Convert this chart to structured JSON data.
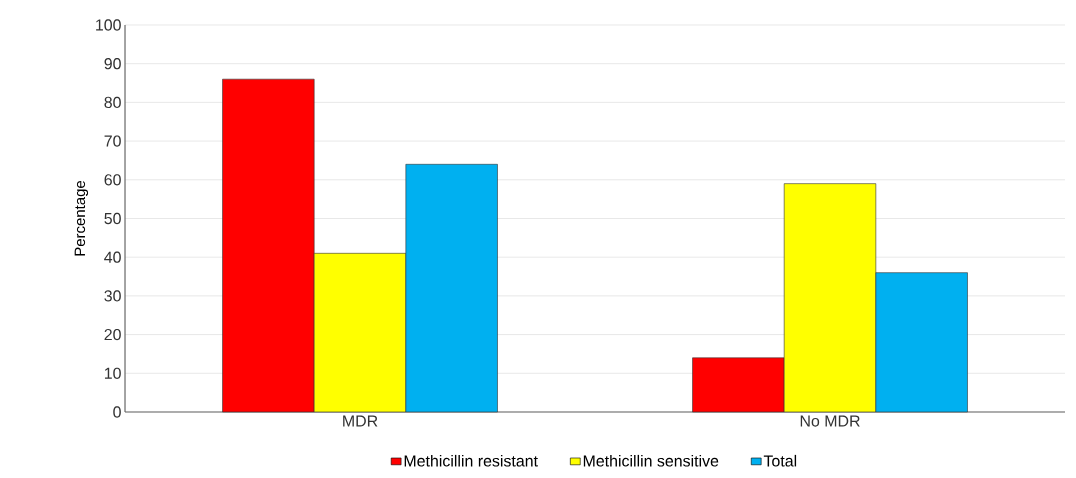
{
  "chart_data": {
    "type": "bar",
    "ylabel": "Percentage",
    "categories": [
      "MDR",
      "No MDR"
    ],
    "series": [
      {
        "name": "Methicillin resistant",
        "color": "#ff0000",
        "values": [
          86,
          14
        ]
      },
      {
        "name": "Methicillin sensitive",
        "color": "#ffff00",
        "values": [
          41,
          59
        ]
      },
      {
        "name": "Total",
        "color": "#00b0f0",
        "values": [
          64,
          36
        ]
      }
    ],
    "ylim": [
      0,
      100
    ],
    "yticks": [
      0,
      10,
      20,
      30,
      40,
      50,
      60,
      70,
      80,
      90,
      100
    ],
    "grid": "y",
    "legend": "bottom"
  }
}
